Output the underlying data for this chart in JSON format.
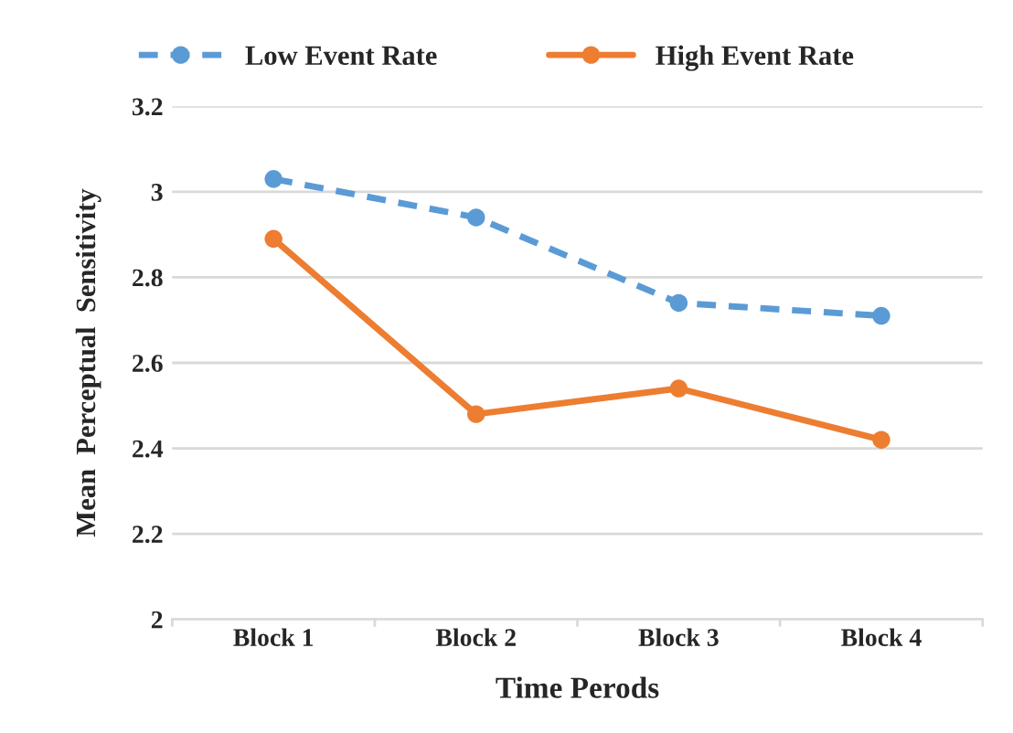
{
  "chart_data": {
    "type": "line",
    "xlabel": "Time Perods",
    "ylabel": "Mean  Perceptual  Sensitivity",
    "categories": [
      "Block 1",
      "Block 2",
      "Block 3",
      "Block 4"
    ],
    "series": [
      {
        "name": "Low Event Rate",
        "color": "#5b9bd5",
        "line_style": "dashed",
        "values": [
          3.03,
          2.94,
          2.74,
          2.71
        ]
      },
      {
        "name": "High Event Rate",
        "color": "#ed7d31",
        "line_style": "solid",
        "values": [
          2.89,
          2.48,
          2.54,
          2.42
        ]
      }
    ],
    "ylim": [
      2,
      3.2
    ],
    "yticks": [
      2,
      2.2,
      2.4,
      2.6,
      2.8,
      3,
      3.2
    ],
    "grid": "y",
    "legend": "top",
    "marker": "circle"
  }
}
